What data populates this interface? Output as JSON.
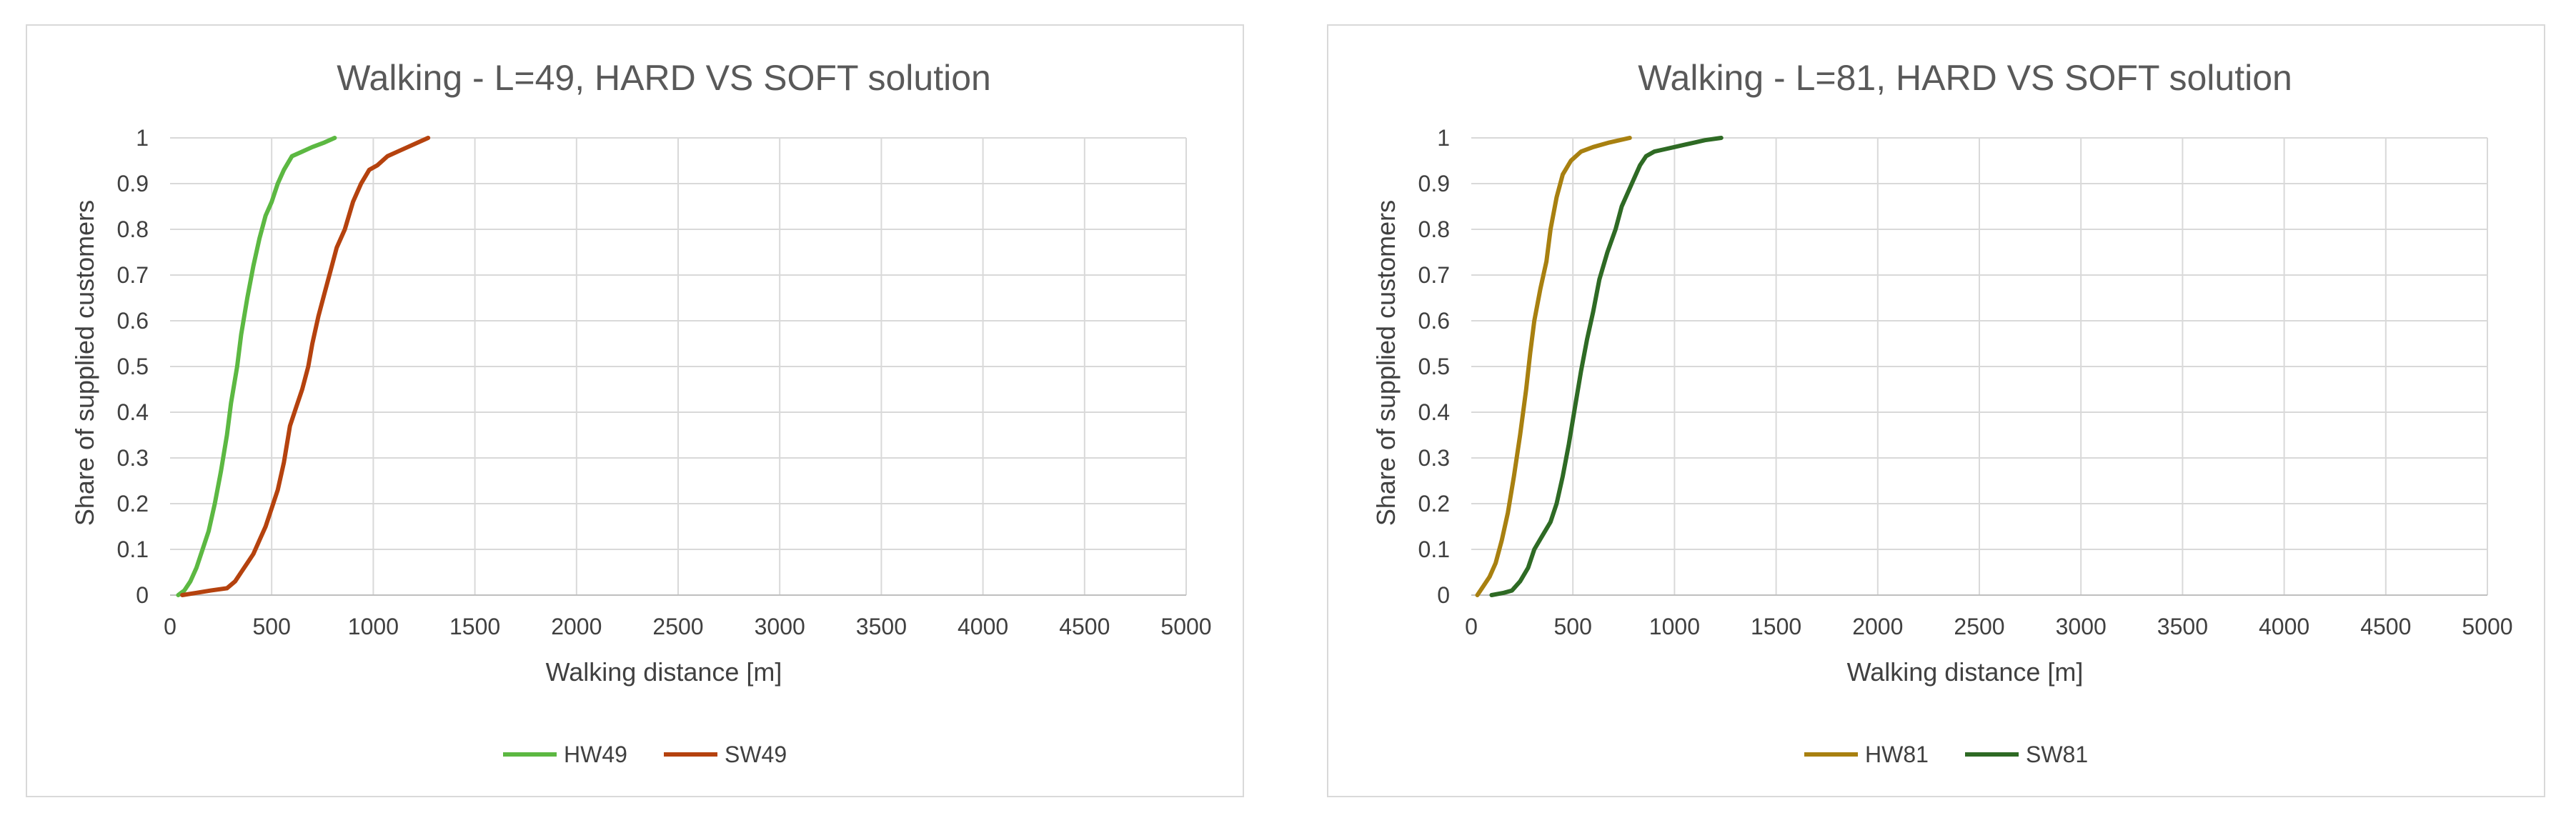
{
  "chart_data": [
    {
      "type": "line",
      "title": "Walking - L=49, HARD VS SOFT solution",
      "xlabel": "Walking distance [m]",
      "ylabel": "Share of supplied customers",
      "xlim": [
        0,
        5000
      ],
      "ylim": [
        0,
        1
      ],
      "x_ticks": [
        "0",
        "500",
        "1000",
        "1500",
        "2000",
        "2500",
        "3000",
        "3500",
        "4000",
        "4500",
        "5000"
      ],
      "y_ticks": [
        "0",
        "0.1",
        "0.2",
        "0.3",
        "0.4",
        "0.5",
        "0.6",
        "0.7",
        "0.8",
        "0.9",
        "1"
      ],
      "grid": true,
      "legend_position": "bottom",
      "series": [
        {
          "name": "HW49",
          "color": "#5cb842",
          "points": [
            [
              40,
              0
            ],
            [
              70,
              0.01
            ],
            [
              100,
              0.03
            ],
            [
              130,
              0.06
            ],
            [
              160,
              0.1
            ],
            [
              190,
              0.14
            ],
            [
              220,
              0.2
            ],
            [
              250,
              0.27
            ],
            [
              280,
              0.35
            ],
            [
              300,
              0.42
            ],
            [
              330,
              0.5
            ],
            [
              350,
              0.57
            ],
            [
              380,
              0.65
            ],
            [
              410,
              0.72
            ],
            [
              440,
              0.78
            ],
            [
              470,
              0.83
            ],
            [
              500,
              0.86
            ],
            [
              530,
              0.9
            ],
            [
              560,
              0.93
            ],
            [
              600,
              0.96
            ],
            [
              650,
              0.97
            ],
            [
              700,
              0.98
            ],
            [
              760,
              0.99
            ],
            [
              810,
              1.0
            ]
          ]
        },
        {
          "name": "SW49",
          "color": "#b5420e",
          "points": [
            [
              60,
              0
            ],
            [
              130,
              0.005
            ],
            [
              200,
              0.01
            ],
            [
              280,
              0.015
            ],
            [
              320,
              0.03
            ],
            [
              350,
              0.05
            ],
            [
              380,
              0.07
            ],
            [
              410,
              0.09
            ],
            [
              440,
              0.12
            ],
            [
              470,
              0.15
            ],
            [
              500,
              0.19
            ],
            [
              530,
              0.23
            ],
            [
              560,
              0.29
            ],
            [
              590,
              0.37
            ],
            [
              620,
              0.41
            ],
            [
              650,
              0.45
            ],
            [
              680,
              0.5
            ],
            [
              700,
              0.55
            ],
            [
              730,
              0.61
            ],
            [
              760,
              0.66
            ],
            [
              790,
              0.71
            ],
            [
              820,
              0.76
            ],
            [
              860,
              0.8
            ],
            [
              900,
              0.86
            ],
            [
              940,
              0.9
            ],
            [
              980,
              0.93
            ],
            [
              1020,
              0.94
            ],
            [
              1070,
              0.96
            ],
            [
              1120,
              0.97
            ],
            [
              1170,
              0.98
            ],
            [
              1220,
              0.99
            ],
            [
              1270,
              1.0
            ]
          ]
        }
      ]
    },
    {
      "type": "line",
      "title": "Walking - L=81, HARD VS SOFT solution",
      "xlabel": "Walking distance [m]",
      "ylabel": "Share of supplied customers",
      "xlim": [
        0,
        5000
      ],
      "ylim": [
        0,
        1
      ],
      "x_ticks": [
        "0",
        "500",
        "1000",
        "1500",
        "2000",
        "2500",
        "3000",
        "3500",
        "4000",
        "4500",
        "5000"
      ],
      "y_ticks": [
        "0",
        "0.1",
        "0.2",
        "0.3",
        "0.4",
        "0.5",
        "0.6",
        "0.7",
        "0.8",
        "0.9",
        "1"
      ],
      "grid": true,
      "legend_position": "bottom",
      "series": [
        {
          "name": "HW81",
          "color": "#a88010",
          "points": [
            [
              30,
              0
            ],
            [
              60,
              0.02
            ],
            [
              90,
              0.04
            ],
            [
              120,
              0.07
            ],
            [
              150,
              0.12
            ],
            [
              180,
              0.18
            ],
            [
              210,
              0.26
            ],
            [
              240,
              0.35
            ],
            [
              270,
              0.45
            ],
            [
              290,
              0.53
            ],
            [
              310,
              0.6
            ],
            [
              340,
              0.67
            ],
            [
              370,
              0.73
            ],
            [
              390,
              0.8
            ],
            [
              420,
              0.87
            ],
            [
              450,
              0.92
            ],
            [
              490,
              0.95
            ],
            [
              540,
              0.97
            ],
            [
              600,
              0.98
            ],
            [
              680,
              0.99
            ],
            [
              780,
              1.0
            ]
          ]
        },
        {
          "name": "SW81",
          "color": "#2e6a24",
          "points": [
            [
              100,
              0
            ],
            [
              160,
              0.005
            ],
            [
              200,
              0.01
            ],
            [
              240,
              0.03
            ],
            [
              280,
              0.06
            ],
            [
              310,
              0.1
            ],
            [
              350,
              0.13
            ],
            [
              390,
              0.16
            ],
            [
              420,
              0.2
            ],
            [
              450,
              0.26
            ],
            [
              480,
              0.33
            ],
            [
              510,
              0.41
            ],
            [
              540,
              0.49
            ],
            [
              570,
              0.56
            ],
            [
              600,
              0.62
            ],
            [
              630,
              0.69
            ],
            [
              670,
              0.75
            ],
            [
              710,
              0.8
            ],
            [
              740,
              0.85
            ],
            [
              770,
              0.88
            ],
            [
              800,
              0.91
            ],
            [
              830,
              0.94
            ],
            [
              860,
              0.96
            ],
            [
              900,
              0.97
            ],
            [
              950,
              0.975
            ],
            [
              1000,
              0.98
            ],
            [
              1050,
              0.985
            ],
            [
              1100,
              0.99
            ],
            [
              1150,
              0.995
            ],
            [
              1230,
              1.0
            ]
          ]
        }
      ]
    }
  ]
}
